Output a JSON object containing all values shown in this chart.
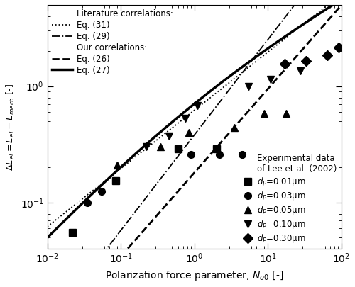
{
  "xlim": [
    0.01,
    100
  ],
  "ylim": [
    0.04,
    5
  ],
  "xlabel": "Polarization force parameter, $N_{\\sigma0}$ [-]",
  "ylabel": "$\\Delta E_{el} = E_{el} - E_{mech}$ [-]",
  "experimental": {
    "sq": {
      "label": "$d_P$=0.01μm",
      "marker": "s",
      "x": [
        0.022,
        0.085,
        0.6,
        2.0
      ],
      "y": [
        0.055,
        0.155,
        0.29,
        0.29
      ]
    },
    "ci": {
      "label": "$d_P$=0.03μm",
      "marker": "o",
      "x": [
        0.035,
        0.055,
        0.9,
        2.2,
        4.5
      ],
      "y": [
        0.1,
        0.125,
        0.26,
        0.26,
        0.26
      ]
    },
    "tri_up": {
      "label": "$d_P$=0.05μm",
      "marker": "^",
      "x": [
        0.09,
        0.35,
        0.85,
        3.5,
        9.0,
        18.0
      ],
      "y": [
        0.21,
        0.3,
        0.4,
        0.44,
        0.58,
        0.58
      ]
    },
    "tri_down": {
      "label": "$d_P$=0.10μm",
      "marker": "v",
      "x": [
        0.22,
        0.45,
        0.75,
        1.1,
        5.5,
        11.0,
        28.0
      ],
      "y": [
        0.3,
        0.37,
        0.53,
        0.68,
        1.0,
        1.15,
        1.35
      ]
    },
    "diamond": {
      "label": "$d_P$=0.30μm",
      "marker": "D",
      "x": [
        17.0,
        33.0,
        65.0,
        92.0
      ],
      "y": [
        1.55,
        1.65,
        1.85,
        2.15
      ]
    }
  },
  "lit_label_title": "Literature correlations:",
  "our_label_title": "Our correlations:",
  "exp_label_title": "Experimental data\nof Lee et al. (2002)"
}
